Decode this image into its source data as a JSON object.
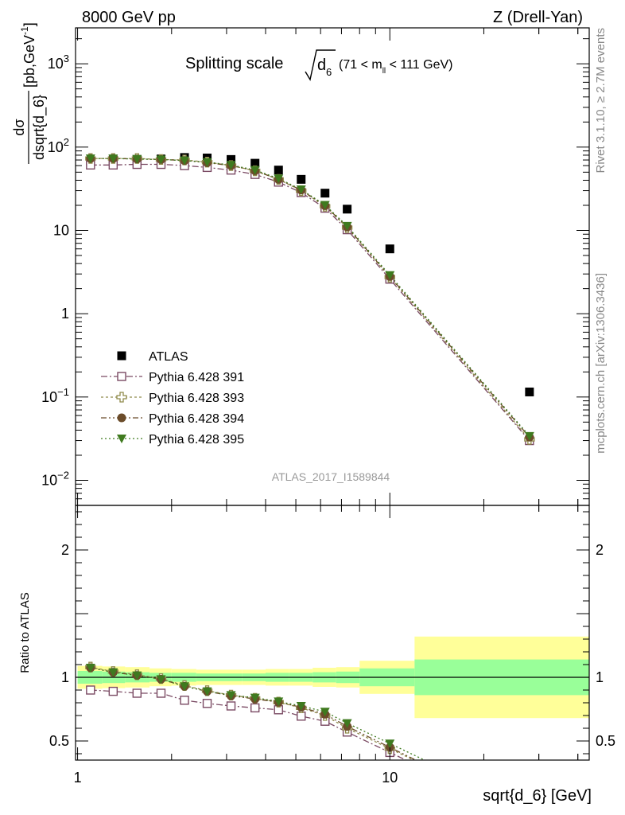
{
  "header": {
    "left": "8000 GeV pp",
    "right": "Z (Drell-Yan)",
    "side_top": "Rivet 3.1.10, ≥ 2.7M events",
    "side_bottom": "mcplots.cern.ch [arXiv:1306.3436]"
  },
  "main_plot": {
    "title_prefix": "Splitting scale",
    "title_var": "d",
    "title_sub": "6",
    "title_cut": "(71 < m",
    "title_cut_sub": "ll",
    "title_cut_end": " < 111 GeV)",
    "ylabel_num": "dσ",
    "ylabel_den": "dsqrt{d_6}",
    "ylabel_units": "[pb,GeV",
    "ylabel_units_exp": "-1",
    "ylabel_units_end": "]",
    "watermark": "ATLAS_2017_I1589844"
  },
  "ratio_plot": {
    "ylabel": "Ratio to ATLAS"
  },
  "xlabel": "sqrt{d_6} [GeV]",
  "colors": {
    "atlas": "#000000",
    "p391": "#7a4a63",
    "p393": "#8f8a4a",
    "p394": "#6b4c2a",
    "p395": "#3f7a1f",
    "band_inner": "#99ff99",
    "band_outer": "#ffff99"
  },
  "chart_data": {
    "type": "scatter",
    "xscale": "log",
    "x_ticks": [
      "1",
      "10"
    ],
    "main": {
      "yscale": "log",
      "ylim": [
        0.005,
        2700
      ],
      "y_ticks": [
        "10^-2",
        "10^-1",
        "1",
        "10",
        "10^2",
        "10^3"
      ],
      "x": [
        1.1,
        1.3,
        1.55,
        1.85,
        2.2,
        2.6,
        3.1,
        3.7,
        4.4,
        5.2,
        6.2,
        7.3,
        10.0,
        28.0
      ],
      "series": [
        {
          "name": "ATLAS",
          "marker": "square-filled",
          "values": [
            68,
            70,
            71,
            72,
            75,
            74,
            71,
            64,
            53,
            41,
            28,
            18,
            6.0,
            0.115
          ]
        },
        {
          "name": "Pythia 6.428 391",
          "marker": "square-open",
          "values": [
            61,
            61,
            62,
            62,
            60,
            57,
            53,
            47,
            38,
            28.5,
            18.5,
            10.2,
            2.6,
            0.03
          ]
        },
        {
          "name": "Pythia 6.428 393",
          "marker": "cross-open",
          "values": [
            73,
            73,
            73,
            71,
            70,
            66,
            60,
            52,
            41,
            30,
            19.5,
            10.8,
            2.75,
            0.031
          ]
        },
        {
          "name": "Pythia 6.428 394",
          "marker": "circle-filled",
          "values": [
            73,
            73,
            72,
            71,
            69,
            65,
            60,
            52,
            41,
            30.5,
            19.8,
            11.0,
            2.8,
            0.033
          ]
        },
        {
          "name": "Pythia 6.428 395",
          "marker": "triangle-down-filled",
          "values": [
            73,
            73,
            72,
            71,
            69,
            66,
            61,
            53,
            42,
            31,
            20.2,
            11.3,
            2.9,
            0.034
          ]
        }
      ]
    },
    "ratio": {
      "ylim": [
        0.35,
        2.35
      ],
      "y_ticks": [
        "0.5",
        "1",
        "2"
      ],
      "reference": 1.0,
      "bins": [
        {
          "lo": 1.0,
          "hi": 1.2,
          "inner": [
            0.95,
            1.05
          ],
          "outer": [
            0.91,
            1.09
          ]
        },
        {
          "lo": 1.2,
          "hi": 1.42,
          "inner": [
            0.955,
            1.045
          ],
          "outer": [
            0.915,
            1.085
          ]
        },
        {
          "lo": 1.42,
          "hi": 1.7,
          "inner": [
            0.96,
            1.04
          ],
          "outer": [
            0.92,
            1.08
          ]
        },
        {
          "lo": 1.7,
          "hi": 2.0,
          "inner": [
            0.965,
            1.035
          ],
          "outer": [
            0.93,
            1.07
          ]
        },
        {
          "lo": 2.0,
          "hi": 2.4,
          "inner": [
            0.965,
            1.035
          ],
          "outer": [
            0.935,
            1.065
          ]
        },
        {
          "lo": 2.4,
          "hi": 2.83,
          "inner": [
            0.97,
            1.03
          ],
          "outer": [
            0.94,
            1.06
          ]
        },
        {
          "lo": 2.83,
          "hi": 3.36,
          "inner": [
            0.97,
            1.03
          ],
          "outer": [
            0.94,
            1.06
          ]
        },
        {
          "lo": 3.36,
          "hi": 4.0,
          "inner": [
            0.97,
            1.03
          ],
          "outer": [
            0.94,
            1.06
          ]
        },
        {
          "lo": 4.0,
          "hi": 4.76,
          "inner": [
            0.965,
            1.035
          ],
          "outer": [
            0.935,
            1.065
          ]
        },
        {
          "lo": 4.76,
          "hi": 5.66,
          "inner": [
            0.965,
            1.035
          ],
          "outer": [
            0.935,
            1.065
          ]
        },
        {
          "lo": 5.66,
          "hi": 6.73,
          "inner": [
            0.96,
            1.04
          ],
          "outer": [
            0.925,
            1.075
          ]
        },
        {
          "lo": 6.73,
          "hi": 8.0,
          "inner": [
            0.955,
            1.045
          ],
          "outer": [
            0.92,
            1.08
          ]
        },
        {
          "lo": 8.0,
          "hi": 12.0,
          "inner": [
            0.93,
            1.07
          ],
          "outer": [
            0.87,
            1.13
          ]
        },
        {
          "lo": 12.0,
          "hi": 45.0,
          "inner": [
            0.86,
            1.14
          ],
          "outer": [
            0.68,
            1.32
          ]
        }
      ],
      "x": [
        1.1,
        1.3,
        1.55,
        1.85,
        2.2,
        2.6,
        3.1,
        3.7,
        4.4,
        5.2,
        6.2,
        7.3,
        10.0
      ],
      "series": [
        {
          "name": "Pythia 6.428 391",
          "values": [
            0.9,
            0.89,
            0.875,
            0.875,
            0.82,
            0.795,
            0.775,
            0.76,
            0.745,
            0.695,
            0.655,
            0.57,
            0.41
          ]
        },
        {
          "name": "Pythia 6.428 393",
          "values": [
            1.08,
            1.045,
            1.02,
            0.99,
            0.935,
            0.895,
            0.86,
            0.835,
            0.805,
            0.76,
            0.7,
            0.6,
            0.44
          ]
        },
        {
          "name": "Pythia 6.428 394",
          "values": [
            1.075,
            1.04,
            1.015,
            0.985,
            0.93,
            0.89,
            0.855,
            0.83,
            0.805,
            0.765,
            0.71,
            0.615,
            0.45
          ]
        },
        {
          "name": "Pythia 6.428 395",
          "values": [
            1.075,
            1.04,
            1.015,
            0.985,
            0.93,
            0.89,
            0.86,
            0.84,
            0.81,
            0.775,
            0.73,
            0.64,
            0.48
          ]
        }
      ]
    }
  }
}
